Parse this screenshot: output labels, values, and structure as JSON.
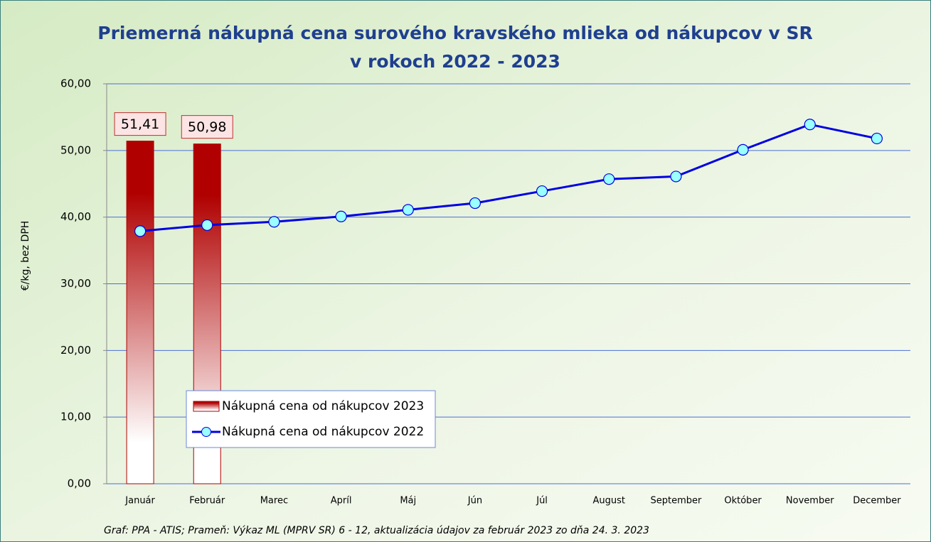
{
  "chart_data": {
    "type": "bar_line",
    "title": [
      "Priemerná nákupná cena surového kravského mlieka od nákupcov v SR",
      "v rokoch 2022 - 2023"
    ],
    "ylabel": "€/kg, bez DPH",
    "source": "Graf: PPA - ATIS; Prameň: Výkaz ML (MPRV SR) 6 - 12, aktualizácia údajov za február 2023 zo dňa 24. 3. 2023",
    "categories": [
      "Január",
      "Február",
      "Marec",
      "Apríl",
      "Máj",
      "Jún",
      "Júl",
      "August",
      "September",
      "Október",
      "November",
      "December"
    ],
    "series": [
      {
        "name": "Nákupná cena od nákupcov 2023",
        "type": "bar",
        "color": "#b00000",
        "values": [
          51.41,
          50.98,
          null,
          null,
          null,
          null,
          null,
          null,
          null,
          null,
          null,
          null
        ],
        "value_labels": [
          "51,41",
          "50,98",
          null,
          null,
          null,
          null,
          null,
          null,
          null,
          null,
          null,
          null
        ]
      },
      {
        "name": "Nákupná cena od nákupcov 2022",
        "type": "line",
        "color": "#0000e0",
        "marker_color": "#99ffff",
        "values": [
          37.9,
          38.8,
          39.3,
          40.1,
          41.1,
          42.1,
          43.9,
          45.7,
          46.1,
          50.1,
          53.9,
          51.8
        ]
      }
    ],
    "ylim": [
      0,
      60
    ],
    "yticks": [
      {
        "value": 0,
        "label": "0,00"
      },
      {
        "value": 10,
        "label": "10,00"
      },
      {
        "value": 20,
        "label": "20,00"
      },
      {
        "value": 30,
        "label": "30,00"
      },
      {
        "value": 40,
        "label": "40,00"
      },
      {
        "value": 50,
        "label": "50,00"
      },
      {
        "value": 60,
        "label": "60,00"
      }
    ],
    "grid": true
  }
}
